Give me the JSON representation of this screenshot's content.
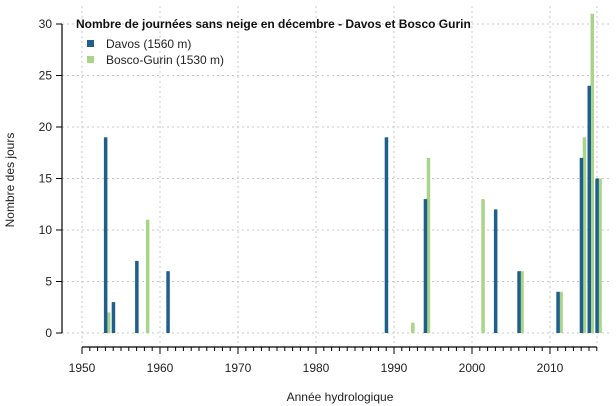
{
  "chart_data": {
    "type": "bar",
    "title": "Nombre de journées sans neige en décembre - Davos et Bosco Gurin",
    "xlabel": "Année hydrologique",
    "ylabel": "Nombre des jours",
    "xlim": [
      1950,
      2016
    ],
    "ylim": [
      0,
      30
    ],
    "xticks": [
      1950,
      1960,
      1970,
      1980,
      1990,
      2000,
      2010
    ],
    "yticks": [
      0,
      5,
      10,
      15,
      20,
      25,
      30
    ],
    "grid": true,
    "legend_position": "top-left",
    "series": [
      {
        "name": "Davos (1560 m)",
        "color": "#1f5f8b",
        "points": [
          {
            "x": 1953,
            "y": 19
          },
          {
            "x": 1954,
            "y": 3
          },
          {
            "x": 1957,
            "y": 7
          },
          {
            "x": 1961,
            "y": 6
          },
          {
            "x": 1989,
            "y": 19
          },
          {
            "x": 1994,
            "y": 13
          },
          {
            "x": 2003,
            "y": 12
          },
          {
            "x": 2006,
            "y": 6
          },
          {
            "x": 2011,
            "y": 4
          },
          {
            "x": 2014,
            "y": 17
          },
          {
            "x": 2015,
            "y": 24
          },
          {
            "x": 2016,
            "y": 15
          }
        ]
      },
      {
        "name": "Bosco-Gurin (1530 m)",
        "color": "#a8d58a",
        "points": [
          {
            "x": 1953,
            "y": 2
          },
          {
            "x": 1958,
            "y": 11
          },
          {
            "x": 1992,
            "y": 1
          },
          {
            "x": 1994,
            "y": 17
          },
          {
            "x": 2001,
            "y": 13
          },
          {
            "x": 2006,
            "y": 6
          },
          {
            "x": 2011,
            "y": 4
          },
          {
            "x": 2014,
            "y": 19
          },
          {
            "x": 2015,
            "y": 31
          },
          {
            "x": 2016,
            "y": 15
          }
        ]
      }
    ]
  }
}
